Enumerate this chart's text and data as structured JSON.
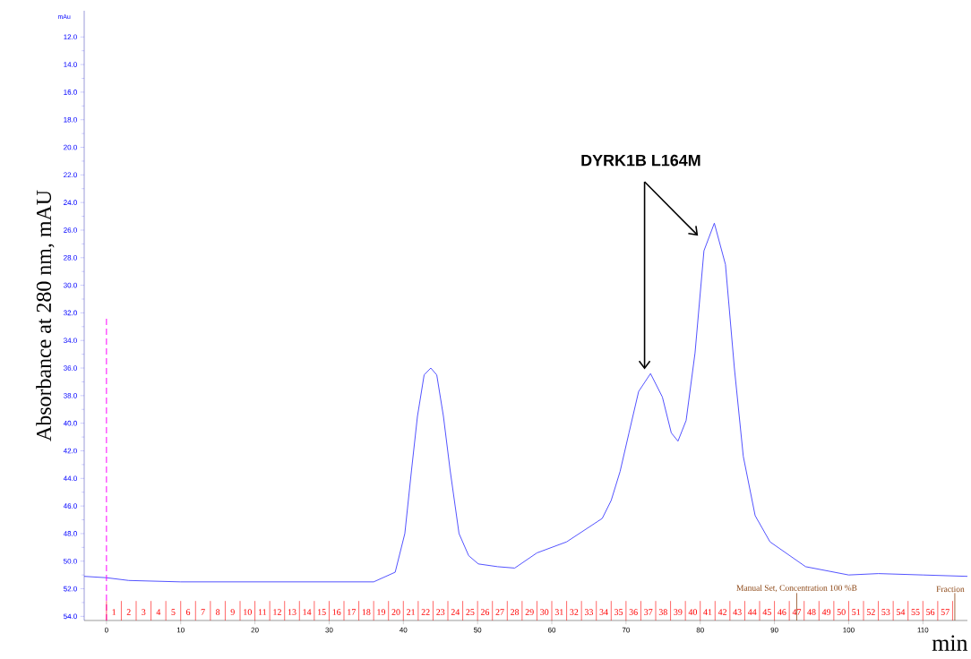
{
  "chart_data": {
    "type": "line",
    "xlabel": "min",
    "ylabel": "Absorbance at 280 nm, mAU",
    "x": [
      -3,
      0,
      3,
      10,
      20,
      30,
      36,
      38.9,
      40.2,
      41.1,
      41.9,
      42.8,
      43.7,
      44.5,
      45.4,
      46.3,
      47.5,
      48.8,
      50.1,
      52.7,
      55,
      58,
      62,
      66.8,
      68,
      69.2,
      70.4,
      71.7,
      73.3,
      74.9,
      76.1,
      77,
      78.1,
      79.3,
      80.5,
      81.9,
      83.4,
      84.6,
      85.8,
      87.4,
      89.4,
      94.2,
      100,
      104,
      110,
      116
    ],
    "series": [
      {
        "color": "#4040ff",
        "values": [
          51.1,
          51.2,
          51.4,
          51.5,
          51.5,
          51.5,
          51.5,
          50.8,
          48.0,
          43.4,
          39.5,
          36.5,
          36.0,
          36.5,
          39.5,
          43.4,
          48.0,
          49.6,
          50.2,
          50.4,
          50.5,
          49.4,
          48.6,
          46.9,
          45.6,
          43.5,
          40.7,
          37.7,
          36.4,
          38.1,
          40.7,
          41.3,
          39.8,
          34.9,
          27.5,
          25.5,
          28.5,
          36.0,
          42.4,
          46.7,
          48.6,
          50.4,
          51.0,
          50.9,
          51.0,
          51.1
        ]
      }
    ],
    "xlim": [
      -3,
      116
    ],
    "ylim": [
      54.3,
      10.1
    ],
    "xticks": [
      0,
      10,
      20,
      30,
      40,
      50,
      60,
      70,
      80,
      90,
      100,
      110
    ],
    "yticks": [
      {
        "value": 12,
        "label": "12.0"
      },
      {
        "value": 14,
        "label": "14.0"
      },
      {
        "value": 16,
        "label": "16.0"
      },
      {
        "value": 18,
        "label": "18.0"
      },
      {
        "value": 20,
        "label": "20.0"
      },
      {
        "value": 22,
        "label": "22.0"
      },
      {
        "value": 24,
        "label": "24.0"
      },
      {
        "value": 26,
        "label": "26.0"
      },
      {
        "value": 28,
        "label": "28.0"
      },
      {
        "value": 30,
        "label": "30.0"
      },
      {
        "value": 32,
        "label": "32.0"
      },
      {
        "value": 34,
        "label": "34.0"
      },
      {
        "value": 36,
        "label": "36.0"
      },
      {
        "value": 38,
        "label": "38.0"
      },
      {
        "value": 40,
        "label": "40.0"
      },
      {
        "value": 42,
        "label": "42.0"
      },
      {
        "value": 44,
        "label": "44.0"
      },
      {
        "value": 46,
        "label": "46.0"
      },
      {
        "value": 48,
        "label": "48.0"
      },
      {
        "value": 50,
        "label": "50.0"
      },
      {
        "value": 52,
        "label": "52.0"
      },
      {
        "value": 54,
        "label": "54.0"
      }
    ],
    "ref_lines": [
      {
        "axis": "x",
        "value": 0,
        "color": "#ff00ff",
        "line_style": "dashed"
      },
      {
        "axis": "x",
        "value": 93,
        "label": "Manual Set, Concentration 100 %B",
        "color": "#8b4513"
      },
      {
        "axis": "x",
        "value": 114.3,
        "label": "Fraction",
        "color": "#8b4513"
      }
    ],
    "annotations": [
      "mAu",
      "DYRK1B L164M",
      "1",
      "2",
      "3",
      "4",
      "5",
      "6",
      "7",
      "8",
      "9",
      "10",
      "11",
      "12",
      "13",
      "14",
      "15",
      "16",
      "17",
      "18",
      "19",
      "20",
      "21",
      "22",
      "23",
      "24",
      "25",
      "26",
      "27",
      "28",
      "29",
      "30",
      "31",
      "32",
      "33",
      "34",
      "35",
      "36",
      "37",
      "38",
      "39",
      "40",
      "41",
      "42",
      "43",
      "44",
      "45",
      "46",
      "47",
      "48",
      "49",
      "50",
      "51",
      "52",
      "53",
      "54",
      "55",
      "56",
      "57"
    ],
    "grid": false,
    "marker": "none",
    "line_style": "solid"
  }
}
